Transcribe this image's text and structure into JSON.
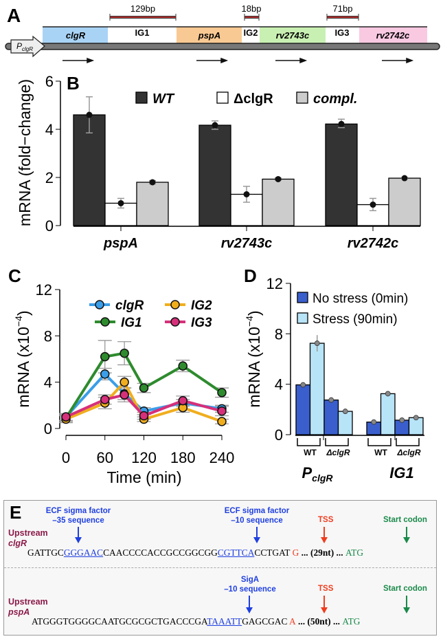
{
  "panel_labels": {
    "a": "A",
    "b": "B",
    "c": "C",
    "d": "D",
    "e": "E"
  },
  "panel_a": {
    "promoter": {
      "p": "P",
      "sub": "clgR"
    },
    "genes": [
      {
        "name": "clgR",
        "color": "#a9d3f5"
      },
      {
        "name": "pspA",
        "color": "#f9c993"
      },
      {
        "name": "rv2743c",
        "color": "#c9f0b3"
      },
      {
        "name": "rv2742c",
        "color": "#f9c9e2"
      }
    ],
    "intergenic": [
      {
        "name": "IG1",
        "size": "129bp"
      },
      {
        "name": "IG2",
        "size": "18bp"
      },
      {
        "name": "IG3",
        "size": "71bp"
      }
    ]
  },
  "chart_data": [
    {
      "panel": "B",
      "type": "bar",
      "ylabel": "mRNA (fold−change)",
      "ylim": [
        0,
        6
      ],
      "yticks": [
        "0",
        "2",
        "4",
        "6"
      ],
      "categories": [
        "pspA",
        "rv2743c",
        "rv2742c"
      ],
      "legend_position": "top",
      "series": [
        {
          "name": "WT",
          "color": "#333333",
          "values": [
            4.6,
            4.17,
            4.22
          ],
          "err_low": [
            3.85,
            4.0,
            4.07
          ],
          "err_high": [
            5.35,
            4.35,
            4.42
          ]
        },
        {
          "name": "ΔclgR",
          "color": "#ffffff",
          "values": [
            0.93,
            1.3,
            0.87
          ],
          "err_low": [
            0.73,
            0.97,
            0.62
          ],
          "err_high": [
            1.13,
            1.63,
            1.13
          ]
        },
        {
          "name": "compl.",
          "color": "#cccccc",
          "values": [
            1.8,
            1.93,
            1.97
          ],
          "err_low": [
            1.73,
            1.88,
            1.95
          ],
          "err_high": [
            1.87,
            1.98,
            1.99
          ]
        }
      ]
    },
    {
      "panel": "C",
      "type": "line",
      "xlabel": "Time (min)",
      "ylabel": "mRNA (x10",
      "ylabel_exp": "−4",
      "ylabel_end": ")",
      "xlim": [
        0,
        240
      ],
      "ylim": [
        0,
        12
      ],
      "xticks": [
        "0",
        "60",
        "120",
        "180",
        "240"
      ],
      "yticks": [
        "0",
        "4",
        "8",
        "12"
      ],
      "x": [
        0,
        60,
        90,
        120,
        180,
        240
      ],
      "legend_position": "top",
      "series": [
        {
          "name": "clgR",
          "color": "#3a9ee8",
          "values": [
            1.0,
            4.7,
            3.0,
            1.5,
            2.2,
            1.7
          ],
          "err": [
            0.3,
            0.5,
            0.5,
            0.3,
            0.3,
            0.3
          ]
        },
        {
          "name": "IG1",
          "color": "#2e8b2e",
          "values": [
            0.9,
            6.2,
            6.5,
            3.5,
            5.4,
            3.1
          ],
          "err": [
            0.3,
            1.4,
            1.0,
            0.4,
            0.5,
            0.4
          ]
        },
        {
          "name": "IG2",
          "color": "#f0ae1e",
          "values": [
            0.8,
            2.2,
            4.0,
            0.8,
            1.8,
            0.6
          ],
          "err": [
            0.3,
            0.5,
            0.5,
            0.2,
            0.4,
            0.2
          ]
        },
        {
          "name": "IG3",
          "color": "#d6307a",
          "values": [
            1.0,
            2.5,
            2.9,
            1.1,
            2.4,
            1.5
          ],
          "err": [
            0.3,
            0.4,
            0.6,
            0.3,
            0.4,
            0.4
          ]
        }
      ]
    },
    {
      "panel": "D",
      "type": "bar",
      "ylabel": "mRNA (x10",
      "ylabel_exp": "−4",
      "ylabel_end": ")",
      "ylim": [
        0,
        12
      ],
      "yticks": [
        "0",
        "4",
        "8",
        "12"
      ],
      "groups": [
        {
          "name": "P",
          "sub": "clgR",
          "strains": [
            "WT",
            "ΔclgR"
          ]
        },
        {
          "name": "IG1",
          "sub": "",
          "strains": [
            "WT",
            "ΔclgR"
          ]
        }
      ],
      "legend_position": "top-right",
      "series": [
        {
          "name": "No stress (0min)",
          "color": "#3a5fcd",
          "values": [
            3.95,
            2.75,
            1.0,
            1.15
          ],
          "err": [
            0.1,
            0.15,
            0.1,
            0.15
          ]
        },
        {
          "name": "Stress (90min)",
          "color": "#b8e4f8",
          "values": [
            7.25,
            1.85,
            3.25,
            1.35
          ],
          "err": [
            0.65,
            0.1,
            0.2,
            0.1
          ]
        }
      ]
    }
  ],
  "panel_e": {
    "row1": {
      "label1": "Upstream",
      "label2": "clgR",
      "ann_35_l1": "ECF sigma factor",
      "ann_35_l2": "–35 sequence",
      "ann_10_l1": "ECF sigma factor",
      "ann_10_l2": "–10 sequence",
      "tss": "TSS",
      "start": "Start codon",
      "seq_a": "GATTGC",
      "seq_b": "GGGAAC",
      "seq_c": "CAACCCCACCGCCGGCGG",
      "seq_d": "CGTTCA",
      "seq_e": "CCTGAT ",
      "seq_tss": "G",
      "seq_gap": " ... (29nt) ... ",
      "seq_atg": "ATG"
    },
    "row2": {
      "label1": "Upstream",
      "label2": "pspA",
      "ann_10_l1": "SigA",
      "ann_10_l2": "–10 sequence",
      "tss": "TSS",
      "start": "Start codon",
      "seq_a": "ATGGGTGGGGCAATGCGCGCTGACCCGA",
      "seq_b": "TAAATT",
      "seq_c": "GAGCGAC ",
      "seq_tss": "A",
      "seq_gap": " ... (50nt) ... ",
      "seq_atg": "ATG"
    }
  }
}
